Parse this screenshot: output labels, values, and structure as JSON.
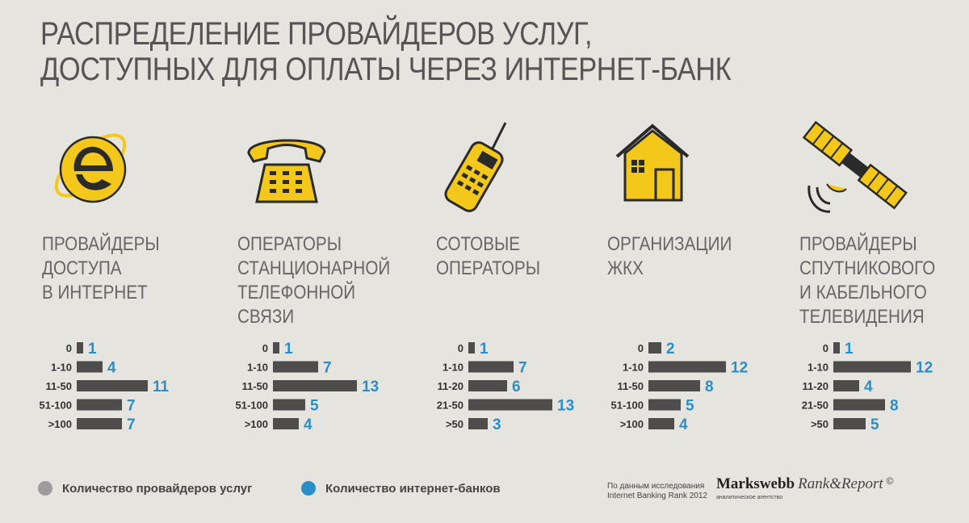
{
  "title": {
    "line1": "РАСПРЕДЕЛЕНИЕ ПРОВАЙДЕРОВ УСЛУГ,",
    "line2": "ДОСТУПНЫХ ДЛЯ ОПЛАТЫ ЧЕРЕЗ ИНТЕРНЕТ-БАНК"
  },
  "colors": {
    "bar": "#4f4d4b",
    "value": "#2b8ec4",
    "icon_fill": "#f3c81a",
    "icon_stroke": "#2a2a2a",
    "legend_grey": "#9c9c9c",
    "legend_blue": "#2b8ec4"
  },
  "categories": [
    {
      "label_lines": [
        "ПРОВАЙДЕРЫ",
        "ДОСТУПА",
        "В ИНТЕРНЕТ"
      ],
      "icon": "internet-explorer-icon"
    },
    {
      "label_lines": [
        "ОПЕРАТОРЫ",
        "СТАНЦИОНАРНОЙ",
        "ТЕЛЕФОННОЙ",
        "СВЯЗИ"
      ],
      "icon": "telephone-icon"
    },
    {
      "label_lines": [
        "СОТОВЫЕ",
        "ОПЕРАТОРЫ"
      ],
      "icon": "mobile-phone-icon"
    },
    {
      "label_lines": [
        "ОРГАНИЗАЦИИ",
        "ЖКХ"
      ],
      "icon": "house-icon"
    },
    {
      "label_lines": [
        "ПРОВАЙДЕРЫ",
        "СПУТНИКОВОГО",
        "И КАБЕЛЬНОГО",
        "ТЕЛЕВИДЕНИЯ"
      ],
      "icon": "satellite-icon"
    }
  ],
  "chart_data": [
    {
      "type": "bar",
      "orientation": "horizontal",
      "title": "ПРОВАЙДЕРЫ ДОСТУПА В ИНТЕРНЕТ",
      "categories": [
        "0",
        "1-10",
        "11-50",
        "51-100",
        ">100"
      ],
      "values": [
        1,
        4,
        11,
        7,
        7
      ]
    },
    {
      "type": "bar",
      "orientation": "horizontal",
      "title": "ОПЕРАТОРЫ СТАНЦИОНАРНОЙ ТЕЛЕФОННОЙ СВЯЗИ",
      "categories": [
        "0",
        "1-10",
        "11-50",
        "51-100",
        ">100"
      ],
      "values": [
        1,
        7,
        13,
        5,
        4
      ]
    },
    {
      "type": "bar",
      "orientation": "horizontal",
      "title": "СОТОВЫЕ ОПЕРАТОРЫ",
      "categories": [
        "0",
        "1-10",
        "11-20",
        "21-50",
        ">50"
      ],
      "values": [
        1,
        7,
        6,
        13,
        3
      ]
    },
    {
      "type": "bar",
      "orientation": "horizontal",
      "title": "ОРГАНИЗАЦИИ ЖКХ",
      "categories": [
        "0",
        "1-10",
        "11-50",
        "51-100",
        ">100"
      ],
      "values": [
        2,
        12,
        8,
        5,
        4
      ]
    },
    {
      "type": "bar",
      "orientation": "horizontal",
      "title": "ПРОВАЙДЕРЫ СПУТНИКОВОГО И КАБЕЛЬНОГО ТЕЛЕВИДЕНИЯ",
      "categories": [
        "0",
        "1-10",
        "11-20",
        "21-50",
        ">50"
      ],
      "values": [
        1,
        12,
        4,
        8,
        5
      ]
    }
  ],
  "legend": {
    "providers": "Количество провайдеров услуг",
    "banks": "Количество интернет-банков"
  },
  "source": {
    "line1": "По данным исследования",
    "line2": "Internet Banking Rank 2012"
  },
  "brand": {
    "name": "Markswebb",
    "product": "Rank&Report",
    "copyright": "©",
    "subtitle": "аналитическое агентство"
  }
}
